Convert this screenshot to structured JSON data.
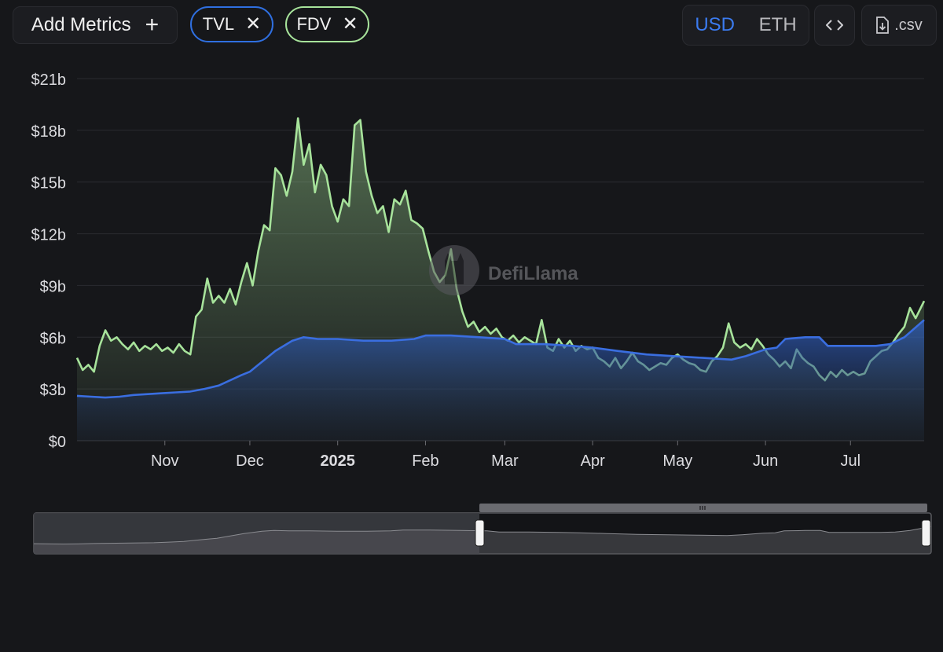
{
  "toolbar": {
    "add_metrics_label": "Add Metrics",
    "chips": [
      {
        "label": "TVL",
        "color": "#2f6fe0"
      },
      {
        "label": "FDV",
        "color": "#a7e39b"
      }
    ],
    "currency": {
      "options": [
        "USD",
        "ETH"
      ],
      "selected": "USD"
    },
    "embed_icon": "code-brackets-icon",
    "csv_label": ".csv",
    "csv_icon": "file-download-icon"
  },
  "watermark": "DefiLlama",
  "chart_data": {
    "type": "area",
    "ylim": [
      0,
      21
    ],
    "y_ticks": [
      0,
      3,
      6,
      9,
      12,
      15,
      18,
      21
    ],
    "y_tick_labels": [
      "$0",
      "$3b",
      "$6b",
      "$9b",
      "$12b",
      "$15b",
      "$18b",
      "$21b"
    ],
    "x_range": [
      "2024-10-01",
      "2025-07-27"
    ],
    "x_ticks": [
      {
        "date": "2024-11-01",
        "label": "Nov",
        "bold": false
      },
      {
        "date": "2024-12-01",
        "label": "Dec",
        "bold": false
      },
      {
        "date": "2025-01-01",
        "label": "2025",
        "bold": true
      },
      {
        "date": "2025-02-01",
        "label": "Feb",
        "bold": false
      },
      {
        "date": "2025-03-01",
        "label": "Mar",
        "bold": false
      },
      {
        "date": "2025-04-01",
        "label": "Apr",
        "bold": false
      },
      {
        "date": "2025-05-01",
        "label": "May",
        "bold": false
      },
      {
        "date": "2025-06-01",
        "label": "Jun",
        "bold": false
      },
      {
        "date": "2025-07-01",
        "label": "Jul",
        "bold": false
      }
    ],
    "grid": true,
    "series": [
      {
        "name": "FDV",
        "color": "#a7e39b",
        "points": [
          [
            "2024-10-01",
            4.8
          ],
          [
            "2024-10-03",
            4.1
          ],
          [
            "2024-10-05",
            4.4
          ],
          [
            "2024-10-07",
            4.0
          ],
          [
            "2024-10-09",
            5.5
          ],
          [
            "2024-10-11",
            6.4
          ],
          [
            "2024-10-13",
            5.8
          ],
          [
            "2024-10-15",
            6.0
          ],
          [
            "2024-10-17",
            5.6
          ],
          [
            "2024-10-19",
            5.3
          ],
          [
            "2024-10-21",
            5.7
          ],
          [
            "2024-10-23",
            5.2
          ],
          [
            "2024-10-25",
            5.5
          ],
          [
            "2024-10-27",
            5.3
          ],
          [
            "2024-10-29",
            5.6
          ],
          [
            "2024-10-31",
            5.2
          ],
          [
            "2024-11-02",
            5.4
          ],
          [
            "2024-11-04",
            5.1
          ],
          [
            "2024-11-06",
            5.6
          ],
          [
            "2024-11-08",
            5.2
          ],
          [
            "2024-11-10",
            5.0
          ],
          [
            "2024-11-12",
            7.2
          ],
          [
            "2024-11-14",
            7.6
          ],
          [
            "2024-11-16",
            9.4
          ],
          [
            "2024-11-18",
            8.0
          ],
          [
            "2024-11-20",
            8.4
          ],
          [
            "2024-11-22",
            8.0
          ],
          [
            "2024-11-24",
            8.8
          ],
          [
            "2024-11-26",
            7.9
          ],
          [
            "2024-11-28",
            9.2
          ],
          [
            "2024-11-30",
            10.3
          ],
          [
            "2024-12-02",
            9.0
          ],
          [
            "2024-12-04",
            11.0
          ],
          [
            "2024-12-06",
            12.5
          ],
          [
            "2024-12-08",
            12.2
          ],
          [
            "2024-12-10",
            15.8
          ],
          [
            "2024-12-12",
            15.4
          ],
          [
            "2024-12-14",
            14.2
          ],
          [
            "2024-12-16",
            15.6
          ],
          [
            "2024-12-18",
            18.7
          ],
          [
            "2024-12-20",
            16.0
          ],
          [
            "2024-12-22",
            17.2
          ],
          [
            "2024-12-24",
            14.4
          ],
          [
            "2024-12-26",
            16.0
          ],
          [
            "2024-12-28",
            15.4
          ],
          [
            "2024-12-30",
            13.6
          ],
          [
            "2025-01-01",
            12.7
          ],
          [
            "2025-01-03",
            14.0
          ],
          [
            "2025-01-05",
            13.6
          ],
          [
            "2025-01-07",
            18.3
          ],
          [
            "2025-01-09",
            18.6
          ],
          [
            "2025-01-11",
            15.6
          ],
          [
            "2025-01-13",
            14.2
          ],
          [
            "2025-01-15",
            13.2
          ],
          [
            "2025-01-17",
            13.6
          ],
          [
            "2025-01-19",
            12.1
          ],
          [
            "2025-01-21",
            14.0
          ],
          [
            "2025-01-23",
            13.7
          ],
          [
            "2025-01-25",
            14.5
          ],
          [
            "2025-01-27",
            12.8
          ],
          [
            "2025-01-29",
            12.6
          ],
          [
            "2025-01-31",
            12.3
          ],
          [
            "2025-02-02",
            11.0
          ],
          [
            "2025-02-04",
            9.8
          ],
          [
            "2025-02-06",
            9.2
          ],
          [
            "2025-02-08",
            9.6
          ],
          [
            "2025-02-10",
            11.1
          ],
          [
            "2025-02-12",
            8.8
          ],
          [
            "2025-02-14",
            7.5
          ],
          [
            "2025-02-16",
            6.6
          ],
          [
            "2025-02-18",
            6.9
          ],
          [
            "2025-02-20",
            6.3
          ],
          [
            "2025-02-22",
            6.6
          ],
          [
            "2025-02-24",
            6.2
          ],
          [
            "2025-02-26",
            6.5
          ],
          [
            "2025-02-28",
            6.0
          ],
          [
            "2025-03-02",
            5.8
          ],
          [
            "2025-03-04",
            6.1
          ],
          [
            "2025-03-06",
            5.7
          ],
          [
            "2025-03-08",
            6.0
          ],
          [
            "2025-03-10",
            5.8
          ],
          [
            "2025-03-12",
            5.6
          ],
          [
            "2025-03-14",
            7.0
          ],
          [
            "2025-03-16",
            5.4
          ],
          [
            "2025-03-18",
            5.2
          ],
          [
            "2025-03-20",
            5.9
          ],
          [
            "2025-03-22",
            5.4
          ],
          [
            "2025-03-24",
            5.8
          ],
          [
            "2025-03-26",
            5.2
          ],
          [
            "2025-03-28",
            5.5
          ],
          [
            "2025-03-30",
            5.3
          ],
          [
            "2025-04-01",
            5.4
          ],
          [
            "2025-04-03",
            4.8
          ],
          [
            "2025-04-05",
            4.6
          ],
          [
            "2025-04-07",
            4.3
          ],
          [
            "2025-04-09",
            4.8
          ],
          [
            "2025-04-11",
            4.2
          ],
          [
            "2025-04-13",
            4.6
          ],
          [
            "2025-04-15",
            5.1
          ],
          [
            "2025-04-17",
            4.6
          ],
          [
            "2025-04-19",
            4.4
          ],
          [
            "2025-04-21",
            4.1
          ],
          [
            "2025-04-23",
            4.3
          ],
          [
            "2025-04-25",
            4.5
          ],
          [
            "2025-04-27",
            4.4
          ],
          [
            "2025-04-29",
            4.8
          ],
          [
            "2025-05-01",
            5.0
          ],
          [
            "2025-05-03",
            4.7
          ],
          [
            "2025-05-05",
            4.5
          ],
          [
            "2025-05-07",
            4.4
          ],
          [
            "2025-05-09",
            4.1
          ],
          [
            "2025-05-11",
            4.0
          ],
          [
            "2025-05-13",
            4.6
          ],
          [
            "2025-05-15",
            4.9
          ],
          [
            "2025-05-17",
            5.4
          ],
          [
            "2025-05-19",
            6.8
          ],
          [
            "2025-05-21",
            5.7
          ],
          [
            "2025-05-23",
            5.4
          ],
          [
            "2025-05-25",
            5.6
          ],
          [
            "2025-05-27",
            5.3
          ],
          [
            "2025-05-29",
            5.9
          ],
          [
            "2025-05-31",
            5.5
          ],
          [
            "2025-06-02",
            5.0
          ],
          [
            "2025-06-04",
            4.7
          ],
          [
            "2025-06-06",
            4.3
          ],
          [
            "2025-06-08",
            4.6
          ],
          [
            "2025-06-10",
            4.2
          ],
          [
            "2025-06-12",
            5.3
          ],
          [
            "2025-06-14",
            4.8
          ],
          [
            "2025-06-16",
            4.5
          ],
          [
            "2025-06-18",
            4.3
          ],
          [
            "2025-06-20",
            3.8
          ],
          [
            "2025-06-22",
            3.5
          ],
          [
            "2025-06-24",
            4.0
          ],
          [
            "2025-06-26",
            3.7
          ],
          [
            "2025-06-28",
            4.1
          ],
          [
            "2025-06-30",
            3.8
          ],
          [
            "2025-07-02",
            4.0
          ],
          [
            "2025-07-04",
            3.8
          ],
          [
            "2025-07-06",
            3.9
          ],
          [
            "2025-07-08",
            4.6
          ],
          [
            "2025-07-10",
            4.9
          ],
          [
            "2025-07-12",
            5.2
          ],
          [
            "2025-07-14",
            5.3
          ],
          [
            "2025-07-16",
            5.7
          ],
          [
            "2025-07-18",
            6.2
          ],
          [
            "2025-07-20",
            6.6
          ],
          [
            "2025-07-22",
            7.7
          ],
          [
            "2025-07-24",
            7.1
          ],
          [
            "2025-07-27",
            8.1
          ]
        ]
      },
      {
        "name": "TVL",
        "color": "#3a6ee0",
        "points": [
          [
            "2024-10-01",
            2.6
          ],
          [
            "2024-10-06",
            2.55
          ],
          [
            "2024-10-11",
            2.5
          ],
          [
            "2024-10-16",
            2.55
          ],
          [
            "2024-10-21",
            2.65
          ],
          [
            "2024-10-26",
            2.7
          ],
          [
            "2024-10-31",
            2.75
          ],
          [
            "2024-11-05",
            2.8
          ],
          [
            "2024-11-10",
            2.85
          ],
          [
            "2024-11-15",
            3.0
          ],
          [
            "2024-11-20",
            3.2
          ],
          [
            "2024-11-24",
            3.5
          ],
          [
            "2024-11-28",
            3.8
          ],
          [
            "2024-12-01",
            4.0
          ],
          [
            "2024-12-04",
            4.4
          ],
          [
            "2024-12-07",
            4.8
          ],
          [
            "2024-12-10",
            5.2
          ],
          [
            "2024-12-13",
            5.5
          ],
          [
            "2024-12-16",
            5.8
          ],
          [
            "2024-12-20",
            6.0
          ],
          [
            "2024-12-25",
            5.9
          ],
          [
            "2025-01-01",
            5.9
          ],
          [
            "2025-01-10",
            5.8
          ],
          [
            "2025-01-20",
            5.8
          ],
          [
            "2025-01-28",
            5.9
          ],
          [
            "2025-02-01",
            6.1
          ],
          [
            "2025-02-10",
            6.1
          ],
          [
            "2025-02-20",
            6.0
          ],
          [
            "2025-03-01",
            5.9
          ],
          [
            "2025-03-05",
            5.6
          ],
          [
            "2025-03-15",
            5.6
          ],
          [
            "2025-03-25",
            5.5
          ],
          [
            "2025-04-01",
            5.4
          ],
          [
            "2025-04-10",
            5.2
          ],
          [
            "2025-04-20",
            5.0
          ],
          [
            "2025-04-30",
            4.9
          ],
          [
            "2025-05-10",
            4.8
          ],
          [
            "2025-05-20",
            4.7
          ],
          [
            "2025-05-25",
            4.9
          ],
          [
            "2025-06-01",
            5.3
          ],
          [
            "2025-06-05",
            5.4
          ],
          [
            "2025-06-08",
            5.9
          ],
          [
            "2025-06-15",
            6.0
          ],
          [
            "2025-06-20",
            6.0
          ],
          [
            "2025-06-23",
            5.5
          ],
          [
            "2025-07-01",
            5.5
          ],
          [
            "2025-07-10",
            5.5
          ],
          [
            "2025-07-15",
            5.6
          ],
          [
            "2025-07-20",
            6.0
          ],
          [
            "2025-07-27",
            7.0
          ]
        ]
      }
    ]
  }
}
